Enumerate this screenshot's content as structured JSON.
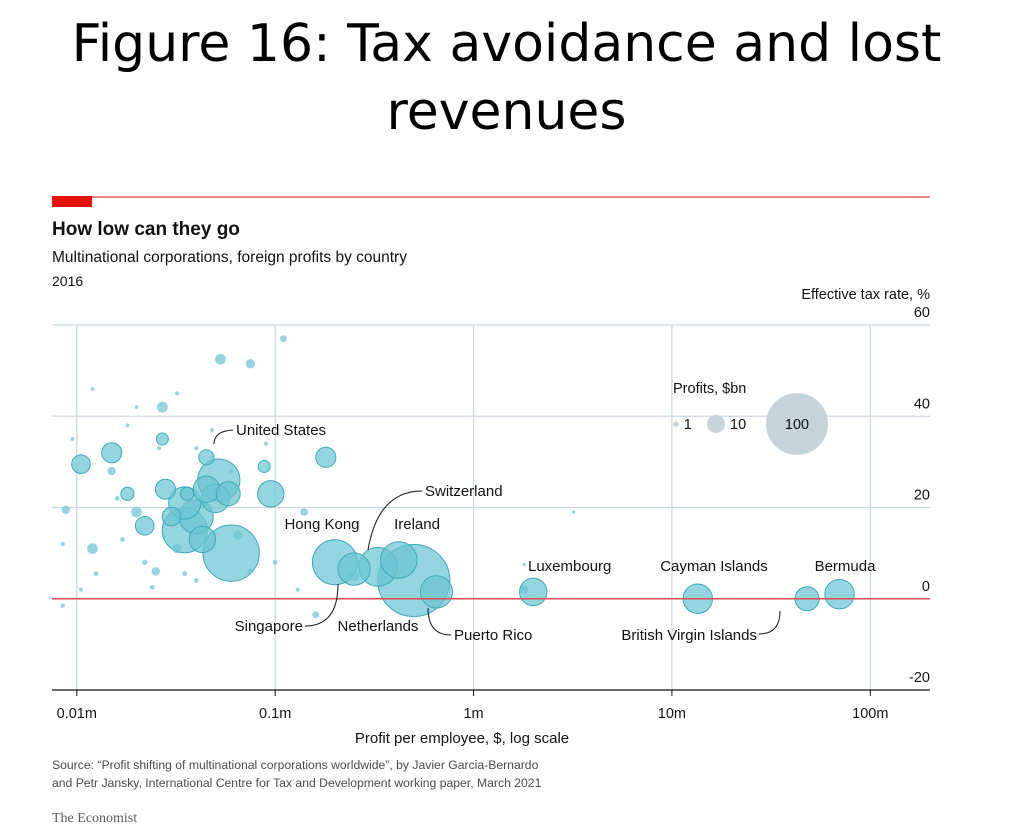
{
  "slide_title": "Figure 16: Tax avoidance and lost revenues",
  "colors": {
    "accent_red": "#e3120b",
    "bubble_fill": "#6cc5d2",
    "bubble_stroke": "#3aaabb",
    "grid": "#c9d6df",
    "legend_grey": "#c6d3db",
    "zero_line": "#d94a4a"
  },
  "chart_data": {
    "type": "scatter",
    "title": "How low can they go",
    "subtitle": "Multinational corporations, foreign profits by country",
    "year_label": "2016",
    "xlabel": "Profit per employee, $, log scale",
    "ylabel": "Effective tax rate, %",
    "x_scale": "log",
    "xlim": [
      0.0075,
      200
    ],
    "x_ticks": [
      {
        "value": 0.01,
        "label": "0.01m"
      },
      {
        "value": 0.1,
        "label": "0.1m"
      },
      {
        "value": 1,
        "label": "1m"
      },
      {
        "value": 10,
        "label": "10m"
      },
      {
        "value": 100,
        "label": "100m"
      }
    ],
    "x_unit": "$m",
    "ylim": [
      -20,
      60
    ],
    "y_ticks": [
      -20,
      0,
      20,
      40,
      60
    ],
    "size_legend": {
      "title": "Profits, $bn",
      "items": [
        {
          "value": 1,
          "label": "1"
        },
        {
          "value": 10,
          "label": "10"
        },
        {
          "value": 100,
          "label": "100"
        }
      ]
    },
    "labeled_points": [
      {
        "name": "United States",
        "x": 0.052,
        "y": 26,
        "profit_bn": 31
      },
      {
        "name": "Hong Kong",
        "x": 0.2,
        "y": 8,
        "profit_bn": 35
      },
      {
        "name": "Singapore",
        "x": 0.25,
        "y": 6.5,
        "profit_bn": 18
      },
      {
        "name": "Switzerland",
        "x": 0.33,
        "y": 7,
        "profit_bn": 26
      },
      {
        "name": "Ireland",
        "x": 0.42,
        "y": 8.5,
        "profit_bn": 23
      },
      {
        "name": "Netherlands",
        "x": 0.5,
        "y": 4,
        "profit_bn": 90
      },
      {
        "name": "Puerto Rico",
        "x": 0.65,
        "y": 1.5,
        "profit_bn": 18
      },
      {
        "name": "Luxembourg",
        "x": 2.0,
        "y": 1.5,
        "profit_bn": 13
      },
      {
        "name": "Cayman Islands",
        "x": 13.5,
        "y": 0,
        "profit_bn": 15
      },
      {
        "name": "British Virgin Islands",
        "x": 48,
        "y": 0,
        "profit_bn": 10
      },
      {
        "name": "Bermuda",
        "x": 70,
        "y": 1,
        "profit_bn": 15
      }
    ],
    "other_points": [
      {
        "x": 0.06,
        "y": 10,
        "profit_bn": 55
      },
      {
        "x": 0.035,
        "y": 15,
        "profit_bn": 35
      },
      {
        "x": 0.04,
        "y": 18,
        "profit_bn": 20
      },
      {
        "x": 0.035,
        "y": 21,
        "profit_bn": 18
      },
      {
        "x": 0.045,
        "y": 24,
        "profit_bn": 12
      },
      {
        "x": 0.05,
        "y": 22,
        "profit_bn": 14
      },
      {
        "x": 0.058,
        "y": 23,
        "profit_bn": 10
      },
      {
        "x": 0.043,
        "y": 13,
        "profit_bn": 12
      },
      {
        "x": 0.095,
        "y": 23,
        "profit_bn": 12
      },
      {
        "x": 0.028,
        "y": 24,
        "profit_bn": 7
      },
      {
        "x": 0.022,
        "y": 16,
        "profit_bn": 6
      },
      {
        "x": 0.03,
        "y": 18,
        "profit_bn": 6
      },
      {
        "x": 0.015,
        "y": 32,
        "profit_bn": 7
      },
      {
        "x": 0.0105,
        "y": 29.5,
        "profit_bn": 6
      },
      {
        "x": 0.045,
        "y": 31,
        "profit_bn": 4
      },
      {
        "x": 0.18,
        "y": 31,
        "profit_bn": 7
      },
      {
        "x": 0.027,
        "y": 35,
        "profit_bn": 2.5
      },
      {
        "x": 0.027,
        "y": 42,
        "profit_bn": 2
      },
      {
        "x": 0.053,
        "y": 52.5,
        "profit_bn": 2
      },
      {
        "x": 0.075,
        "y": 51.5,
        "profit_bn": 1.5
      },
      {
        "x": 0.088,
        "y": 29,
        "profit_bn": 2.5
      },
      {
        "x": 0.018,
        "y": 23,
        "profit_bn": 3
      },
      {
        "x": 0.036,
        "y": 23,
        "profit_bn": 3
      },
      {
        "x": 0.012,
        "y": 11,
        "profit_bn": 2
      },
      {
        "x": 0.02,
        "y": 19,
        "profit_bn": 2
      },
      {
        "x": 0.032,
        "y": 11,
        "profit_bn": 1.5
      },
      {
        "x": 0.025,
        "y": 6,
        "profit_bn": 1.2
      },
      {
        "x": 0.0088,
        "y": 19.5,
        "profit_bn": 1.2
      },
      {
        "x": 0.065,
        "y": 14,
        "profit_bn": 1.5
      },
      {
        "x": 0.015,
        "y": 28,
        "profit_bn": 1.2
      },
      {
        "x": 0.14,
        "y": 19,
        "profit_bn": 1
      },
      {
        "x": 0.11,
        "y": 57,
        "profit_bn": 0.8
      },
      {
        "x": 0.25,
        "y": 5,
        "profit_bn": 2
      },
      {
        "x": 1.8,
        "y": 2,
        "profit_bn": 1.2
      },
      {
        "x": 0.16,
        "y": -3.5,
        "profit_bn": 0.8
      },
      {
        "x": 0.0125,
        "y": 5.5,
        "profit_bn": 0.4
      },
      {
        "x": 0.017,
        "y": 13,
        "profit_bn": 0.4
      },
      {
        "x": 0.016,
        "y": 22,
        "profit_bn": 0.4
      },
      {
        "x": 0.035,
        "y": 5.5,
        "profit_bn": 0.4
      },
      {
        "x": 0.024,
        "y": 2.5,
        "profit_bn": 0.4
      },
      {
        "x": 0.022,
        "y": 8,
        "profit_bn": 0.5
      },
      {
        "x": 0.0085,
        "y": 12,
        "profit_bn": 0.3
      },
      {
        "x": 0.0085,
        "y": -1.5,
        "profit_bn": 0.3
      },
      {
        "x": 0.0105,
        "y": 2,
        "profit_bn": 0.3
      },
      {
        "x": 0.04,
        "y": 4,
        "profit_bn": 0.4
      },
      {
        "x": 0.075,
        "y": 6,
        "profit_bn": 0.5
      },
      {
        "x": 0.1,
        "y": 8,
        "profit_bn": 0.4
      },
      {
        "x": 0.13,
        "y": 2,
        "profit_bn": 0.3
      },
      {
        "x": 0.012,
        "y": 46,
        "profit_bn": 0.25
      },
      {
        "x": 0.02,
        "y": 42,
        "profit_bn": 0.25
      },
      {
        "x": 0.032,
        "y": 45,
        "profit_bn": 0.3
      },
      {
        "x": 0.018,
        "y": 38,
        "profit_bn": 0.25
      },
      {
        "x": 0.09,
        "y": 34,
        "profit_bn": 0.3
      },
      {
        "x": 0.06,
        "y": 28,
        "profit_bn": 0.4
      },
      {
        "x": 0.55,
        "y": 2.5,
        "profit_bn": 0.25
      },
      {
        "x": 3.2,
        "y": 19,
        "profit_bn": 0.2
      },
      {
        "x": 1.8,
        "y": 7.5,
        "profit_bn": 0.2
      },
      {
        "x": 0.026,
        "y": 33,
        "profit_bn": 0.3
      },
      {
        "x": 0.0095,
        "y": 35,
        "profit_bn": 0.25
      },
      {
        "x": 0.04,
        "y": 33,
        "profit_bn": 0.3
      },
      {
        "x": 0.048,
        "y": 37,
        "profit_bn": 0.3
      }
    ],
    "annotations": {
      "source": "Source: “Profit shifting of multinational corporations worldwide”, by Javier Garcia-Bernardo and Petr Jansky, International Centre for Tax and Development working paper, March 2021",
      "source_line1": "Source: “Profit shifting of multinational corporations worldwide”, by Javier Garcia-Bernardo",
      "source_line2": "and Petr Jansky, International Centre for Tax and Development working paper, March 2021",
      "publisher": "The Economist"
    }
  }
}
